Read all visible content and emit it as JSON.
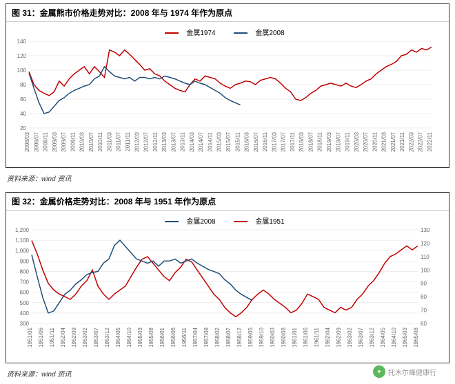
{
  "chart1": {
    "type": "line",
    "title": "图 31：金属熊市价格走势对比：2008 年与 1974 年作为原点",
    "source": "资料来源：wind 资讯",
    "legend": [
      {
        "label": "金属1974",
        "color": "#c00000"
      },
      {
        "label": "金属2008",
        "color": "#1f4e79"
      }
    ],
    "ylim": [
      20,
      140
    ],
    "ytick_step": 20,
    "background_color": "#ffffff",
    "grid_color": "#dddddd",
    "title_fontsize": 12,
    "label_fontsize": 8,
    "xlabels": [
      "2008/03",
      "2008/07",
      "2008/11",
      "2009/03",
      "2009/07",
      "2009/11",
      "2010/03",
      "2010/07",
      "2010/11",
      "2011/03",
      "2011/07",
      "2011/11",
      "2012/03",
      "2012/07",
      "2012/11",
      "2013/03",
      "2013/07",
      "2013/11",
      "2014/03",
      "2014/07",
      "2014/11",
      "2015/03",
      "2015/07",
      "2015/11",
      "2016/03",
      "2016/07",
      "2016/11",
      "2017/03",
      "2017/07",
      "2017/11",
      "2018/03",
      "2018/07",
      "2018/11",
      "2019/03",
      "2019/07",
      "2019/11",
      "2020/03",
      "2020/07",
      "2020/11",
      "2021/03",
      "2021/07",
      "2021/11",
      "2022/03",
      "2022/07",
      "2022/11"
    ],
    "series": {
      "metal1974": [
        98,
        80,
        72,
        68,
        65,
        70,
        85,
        78,
        88,
        95,
        100,
        105,
        95,
        105,
        98,
        90,
        128,
        125,
        120,
        128,
        122,
        115,
        108,
        100,
        102,
        95,
        92,
        85,
        80,
        75,
        72,
        70,
        80,
        88,
        85,
        92,
        90,
        88,
        82,
        78,
        75,
        80,
        82,
        85,
        84,
        80,
        86,
        88,
        90,
        88,
        82,
        75,
        70,
        60,
        58,
        62,
        68,
        72,
        78,
        80,
        82,
        80,
        78,
        82,
        78,
        76,
        80,
        85,
        88,
        95,
        100,
        105,
        108,
        112,
        120,
        122,
        128,
        125,
        130,
        128,
        132
      ],
      "metal2008": [
        96,
        75,
        55,
        40,
        42,
        50,
        58,
        62,
        68,
        72,
        75,
        78,
        80,
        88,
        92,
        105,
        98,
        92,
        90,
        88,
        90,
        85,
        90,
        90,
        88,
        90,
        88,
        92,
        90,
        88,
        85,
        82,
        80,
        85,
        82,
        80,
        76,
        72,
        68,
        62,
        58,
        55,
        52
      ]
    }
  },
  "chart2": {
    "type": "line",
    "title": "图 32：金属价格走势对比：2008 年与 1951 年作为原点",
    "source": "资料来源：wind 资讯",
    "legend": [
      {
        "label": "金属2008",
        "color": "#1f4e79"
      },
      {
        "label": "金属1951",
        "color": "#c00000"
      }
    ],
    "y1lim": [
      300,
      1200
    ],
    "y1tick_step": 100,
    "y2lim": [
      60,
      130
    ],
    "y2tick_step": 10,
    "background_color": "#ffffff",
    "grid_color": "#dddddd",
    "title_fontsize": 12,
    "label_fontsize": 8,
    "xlabels": [
      "1951/01",
      "1951/06",
      "1951/11",
      "1952/04",
      "1952/09",
      "1953/02",
      "1953/07",
      "1953/12",
      "1954/05",
      "1954/10",
      "1955/03",
      "1955/08",
      "1956/01",
      "1956/06",
      "1956/11",
      "1957/04",
      "1957/09",
      "1958/02",
      "1958/07",
      "1958/12",
      "1959/05",
      "1959/10",
      "1960/03",
      "1960/08",
      "1961/01",
      "1961/06",
      "1961/11",
      "1962/04",
      "1962/09",
      "1963/02",
      "1963/07",
      "1963/12",
      "1964/05",
      "1964/10",
      "1965/03",
      "1965/08"
    ],
    "series": {
      "metal2008": [
        960,
        750,
        550,
        400,
        420,
        500,
        580,
        620,
        680,
        720,
        770,
        790,
        800,
        880,
        920,
        1050,
        1100,
        1040,
        980,
        920,
        900,
        880,
        900,
        850,
        900,
        900,
        920,
        880,
        900,
        920,
        880,
        850,
        820,
        800,
        780,
        720,
        680,
        620,
        580,
        550,
        520
      ],
      "metal1951": [
        122,
        112,
        100,
        90,
        85,
        82,
        80,
        78,
        82,
        88,
        92,
        100,
        88,
        82,
        78,
        82,
        85,
        88,
        95,
        102,
        108,
        110,
        105,
        100,
        95,
        92,
        98,
        102,
        108,
        106,
        100,
        94,
        88,
        82,
        78,
        72,
        68,
        65,
        68,
        72,
        78,
        82,
        85,
        82,
        78,
        75,
        72,
        68,
        70,
        75,
        82,
        80,
        78,
        72,
        70,
        68,
        72,
        70,
        72,
        78,
        82,
        88,
        92,
        98,
        105,
        110,
        112,
        115,
        118,
        115,
        118
      ]
    }
  },
  "watermark": "托木尔峰健康行"
}
